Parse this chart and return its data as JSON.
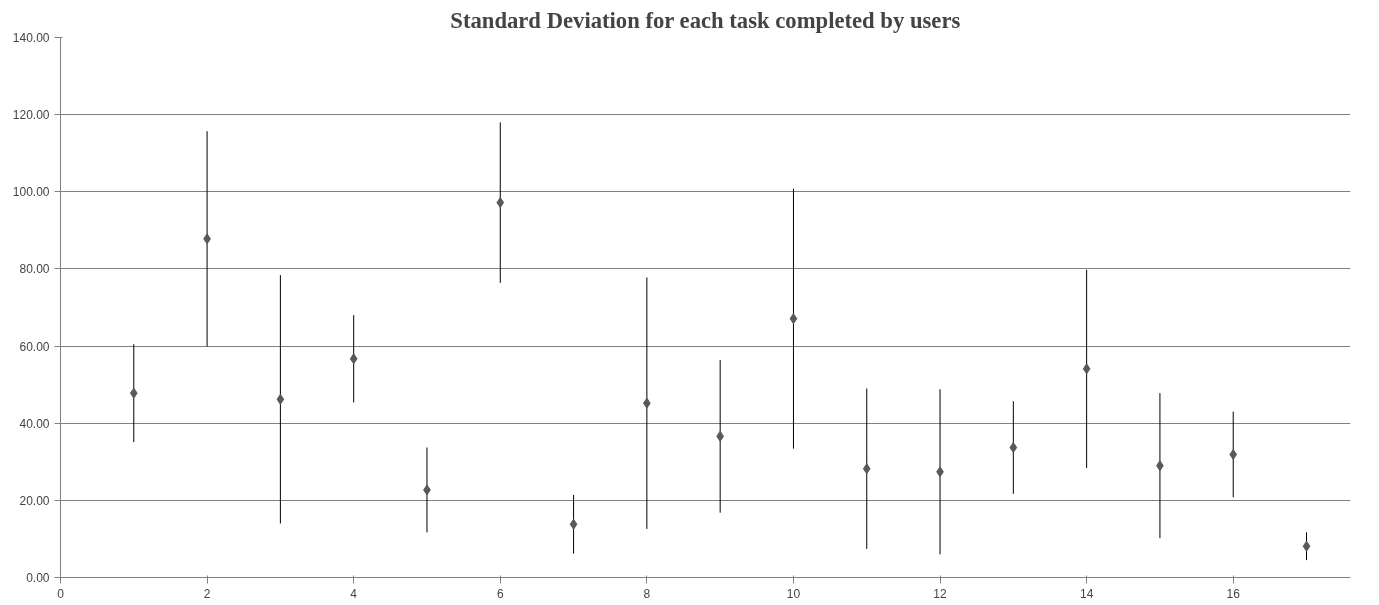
{
  "chart_data": {
    "type": "scatter",
    "title": "Standard Deviation for each task completed by users",
    "x": [
      1,
      2,
      3,
      4,
      5,
      6,
      7,
      8,
      9,
      10,
      11,
      12,
      13,
      14,
      15,
      16,
      17
    ],
    "series": [
      {
        "color": "#595959",
        "values": [
          47.8,
          87.8,
          46.2,
          56.7,
          22.7,
          97.2,
          13.8,
          45.2,
          36.6,
          67.1,
          28.2,
          27.4,
          33.7,
          54.1,
          29.0,
          31.9,
          8.1
        ],
        "errors": [
          12.7,
          27.9,
          32.2,
          11.3,
          11.0,
          20.8,
          7.6,
          32.6,
          19.8,
          33.7,
          20.8,
          21.4,
          12.0,
          25.7,
          18.8,
          11.1,
          3.6
        ]
      }
    ],
    "xlim": [
      0,
      17.6
    ],
    "ylim": [
      0,
      140
    ],
    "xticks": [
      0,
      2,
      4,
      6,
      8,
      10,
      12,
      14,
      16
    ],
    "yticks": [
      {
        "value": 0,
        "label": "0.00"
      },
      {
        "value": 20,
        "label": "20.00"
      },
      {
        "value": 40,
        "label": "40.00"
      },
      {
        "value": 60,
        "label": "60.00"
      },
      {
        "value": 80,
        "label": "80.00"
      },
      {
        "value": 100,
        "label": "100.00"
      },
      {
        "value": 120,
        "label": "120.00"
      },
      {
        "value": 140,
        "label": "140.00"
      }
    ],
    "grid": "y",
    "marker": "diamond"
  }
}
